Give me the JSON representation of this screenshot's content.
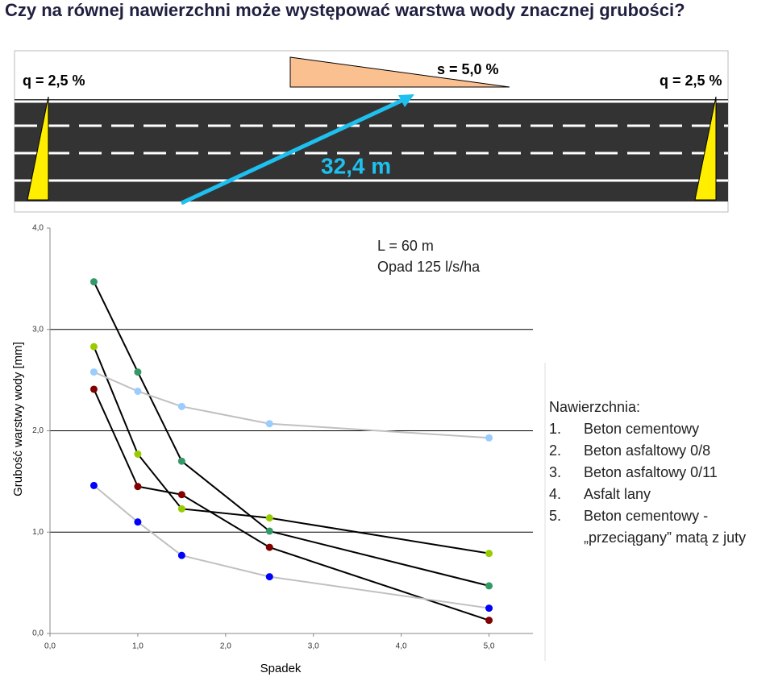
{
  "title": "Czy na równej nawierzchni może występować warstwa wody znacznej grubości?",
  "diagram": {
    "left_slope": "q = 2,5 %",
    "right_slope": "q = 2,5 %",
    "long_slope": "s = 5,0 %",
    "flow_path": "32,4 m"
  },
  "legend": {
    "title": "Nawierzchnia:",
    "items": [
      {
        "number": "1.",
        "text": "Beton cementowy"
      },
      {
        "number": "2.",
        "text": "Beton asfaltowy 0/8"
      },
      {
        "number": "3.",
        "text": "Beton asfaltowy 0/11"
      },
      {
        "number": "4.",
        "text": "Asfalt lany"
      },
      {
        "number": "5.",
        "text": "Beton cementowy -",
        "text2": "„przeciągany” matą z juty"
      }
    ]
  },
  "chart_data": {
    "type": "line",
    "annotations": [
      "L = 60 m",
      "Opad 125 l/s/ha"
    ],
    "x_label": "Spadek",
    "y_label": "Grubość warstwy wody [mm]",
    "x": [
      0.5,
      1.0,
      1.5,
      2.5,
      5.0
    ],
    "xlim": [
      0,
      5.5
    ],
    "ylim": [
      0,
      4.0
    ],
    "xticks": [
      {
        "value": 0,
        "label": "0,0"
      },
      {
        "value": 1,
        "label": "1,0"
      },
      {
        "value": 2,
        "label": "2,0"
      },
      {
        "value": 3,
        "label": "3,0"
      },
      {
        "value": 4,
        "label": "4,0"
      },
      {
        "value": 5,
        "label": "5,0"
      }
    ],
    "yticks": [
      {
        "value": 0,
        "label": "0,0"
      },
      {
        "value": 1,
        "label": "1,0"
      },
      {
        "value": 2,
        "label": "2,0"
      },
      {
        "value": 3,
        "label": "3,0"
      },
      {
        "value": 4,
        "label": "4,0"
      }
    ],
    "grid": true,
    "series": [
      {
        "color": "#339966",
        "line_color": "#000000",
        "values": [
          3.47,
          2.58,
          1.7,
          1.01,
          0.47
        ]
      },
      {
        "color": "#99cc00",
        "line_color": "#000000",
        "values": [
          2.83,
          1.77,
          1.23,
          1.14,
          0.79
        ]
      },
      {
        "color": "#99ccff",
        "line_color": "#c0c0c0",
        "values": [
          2.58,
          2.39,
          2.24,
          2.07,
          1.93
        ]
      },
      {
        "color": "#800000",
        "line_color": "#000000",
        "values": [
          2.41,
          1.45,
          1.37,
          0.85,
          0.13
        ]
      },
      {
        "color": "#0000ff",
        "line_color": "#c0c0c0",
        "values": [
          1.46,
          1.1,
          0.77,
          0.56,
          0.25
        ]
      }
    ]
  }
}
